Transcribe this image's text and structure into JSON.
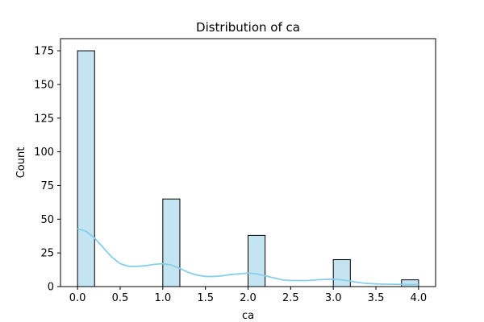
{
  "chart_data": {
    "type": "bar",
    "title": "Distribution of ca",
    "xlabel": "ca",
    "ylabel": "Count",
    "xlim": [
      -0.2,
      4.2
    ],
    "ylim": [
      0,
      184
    ],
    "x_ticks": [
      0.0,
      0.5,
      1.0,
      1.5,
      2.0,
      2.5,
      3.0,
      3.5,
      4.0
    ],
    "x_tick_labels": [
      "0.0",
      "0.5",
      "1.0",
      "1.5",
      "2.0",
      "2.5",
      "3.0",
      "3.5",
      "4.0"
    ],
    "y_ticks": [
      0,
      25,
      50,
      75,
      100,
      125,
      150,
      175
    ],
    "y_tick_labels": [
      "0",
      "25",
      "50",
      "75",
      "100",
      "125",
      "150",
      "175"
    ],
    "bins": [
      {
        "x0": 0.0,
        "x1": 0.2,
        "count": 175
      },
      {
        "x0": 1.0,
        "x1": 1.2,
        "count": 65
      },
      {
        "x0": 2.0,
        "x1": 2.2,
        "count": 38
      },
      {
        "x0": 3.0,
        "x1": 3.2,
        "count": 20
      },
      {
        "x0": 3.8,
        "x1": 4.0,
        "count": 5
      }
    ],
    "kde": {
      "x": [
        0.0,
        0.1,
        0.2,
        0.3,
        0.4,
        0.5,
        0.6,
        0.7,
        0.8,
        0.9,
        1.0,
        1.1,
        1.2,
        1.3,
        1.4,
        1.5,
        1.6,
        1.7,
        1.8,
        1.9,
        2.0,
        2.1,
        2.2,
        2.3,
        2.4,
        2.5,
        2.6,
        2.7,
        2.8,
        2.9,
        3.0,
        3.1,
        3.2,
        3.3,
        3.4,
        3.5,
        3.6,
        3.7,
        3.8,
        3.9,
        4.0
      ],
      "y": [
        43,
        41,
        36,
        29,
        22,
        17,
        15,
        15,
        15.5,
        16.5,
        17,
        16,
        13.5,
        10.5,
        8.5,
        7.5,
        7.5,
        8,
        9,
        9.5,
        10,
        9.5,
        8,
        6.5,
        5,
        4.5,
        4.5,
        4.5,
        5,
        5.3,
        5.5,
        5,
        4,
        3,
        2.3,
        2,
        1.8,
        1.7,
        1.6,
        1.5,
        1.5
      ]
    },
    "grid": false,
    "colors": {
      "bar_fill": "#c5e4f1",
      "bar_edge": "#000000",
      "kde_line": "#87ceeb"
    }
  }
}
